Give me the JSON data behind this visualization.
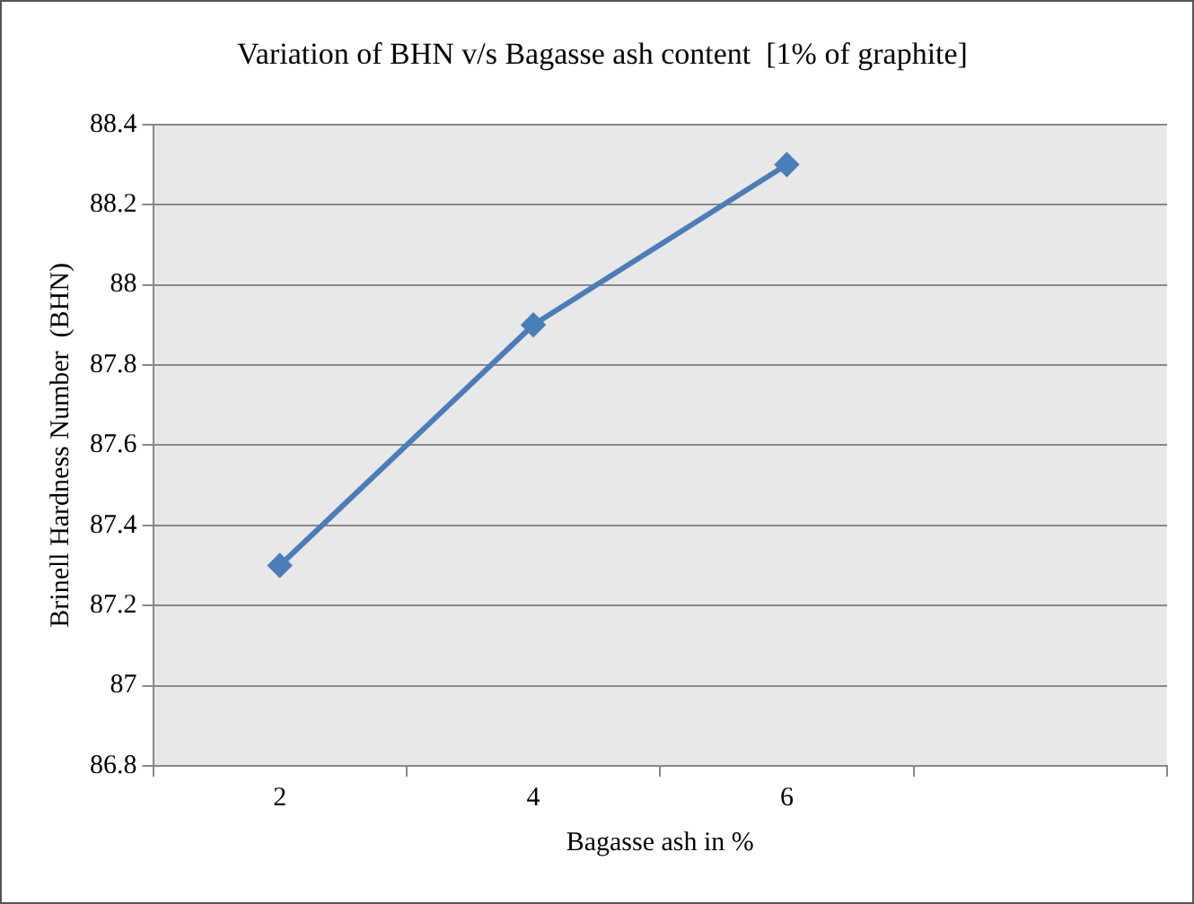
{
  "chart_data": {
    "type": "line",
    "title": "Variation of BHN v/s Bagasse ash content  [1% of graphite]",
    "xlabel": "Bagasse ash in %",
    "ylabel": "Brinell Hardness Number  (BHN)",
    "categories": [
      "2",
      "4",
      "6",
      null
    ],
    "series": [
      {
        "color": "#4a7ebb",
        "values": [
          87.3,
          87.9,
          88.3,
          null
        ]
      }
    ],
    "ylim": [
      86.8,
      88.4
    ],
    "yticks": [
      86.8,
      87,
      87.2,
      87.4,
      87.6,
      87.8,
      88,
      88.2,
      88.4
    ],
    "grid": "y",
    "legend": false,
    "marker": "diamond",
    "line_style": "solid"
  }
}
